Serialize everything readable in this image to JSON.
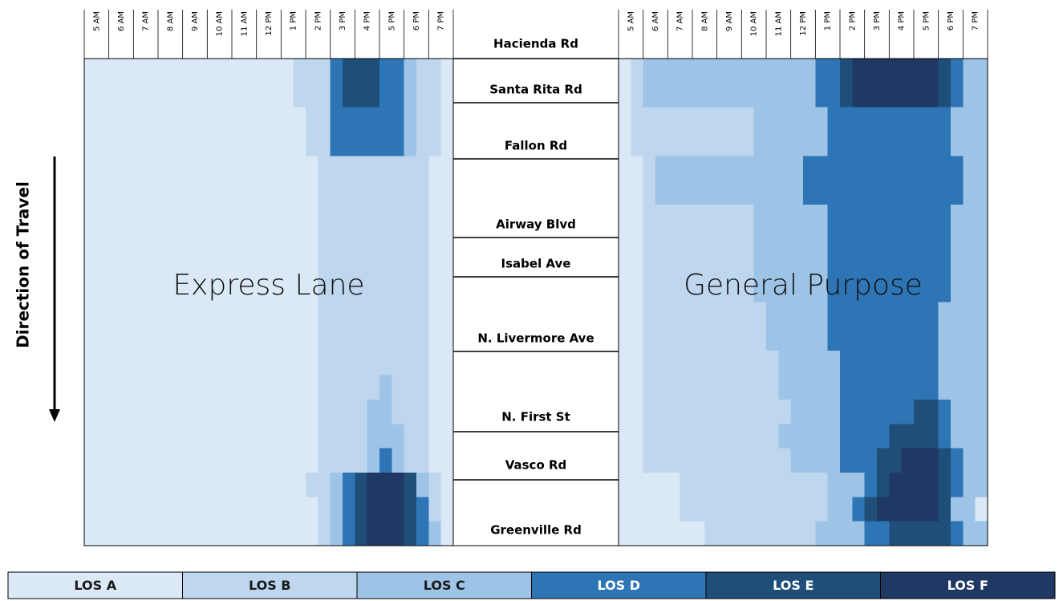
{
  "chart_data": [
    {
      "type": "heatmap",
      "title": "Express Lane",
      "x_labels": [
        "5 AM",
        "6 AM",
        "7 AM",
        "8 AM",
        "9 AM",
        "10 AM",
        "11 AM",
        "12 PM",
        "1 PM",
        "2 PM",
        "3 PM",
        "4 PM",
        "5 PM",
        "6 PM",
        "7 PM"
      ],
      "values": [
        [
          0,
          0,
          0,
          0,
          0,
          0,
          0,
          0,
          0,
          0,
          0,
          0,
          0,
          0,
          0,
          0,
          0,
          1,
          1,
          1,
          3,
          4,
          4,
          4,
          3,
          3,
          2,
          1,
          1,
          0
        ],
        [
          0,
          0,
          0,
          0,
          0,
          0,
          0,
          0,
          0,
          0,
          0,
          0,
          0,
          0,
          0,
          0,
          0,
          1,
          1,
          1,
          3,
          4,
          4,
          4,
          3,
          3,
          2,
          1,
          1,
          0
        ],
        [
          0,
          0,
          0,
          0,
          0,
          0,
          0,
          0,
          0,
          0,
          0,
          0,
          0,
          0,
          0,
          0,
          0,
          0,
          1,
          1,
          3,
          3,
          3,
          3,
          3,
          3,
          2,
          1,
          1,
          0
        ],
        [
          0,
          0,
          0,
          0,
          0,
          0,
          0,
          0,
          0,
          0,
          0,
          0,
          0,
          0,
          0,
          0,
          0,
          0,
          1,
          1,
          3,
          3,
          3,
          3,
          3,
          3,
          2,
          1,
          1,
          0
        ],
        [
          0,
          0,
          0,
          0,
          0,
          0,
          0,
          0,
          0,
          0,
          0,
          0,
          0,
          0,
          0,
          0,
          0,
          0,
          0,
          1,
          1,
          1,
          1,
          1,
          1,
          1,
          1,
          1,
          0,
          0
        ],
        [
          0,
          0,
          0,
          0,
          0,
          0,
          0,
          0,
          0,
          0,
          0,
          0,
          0,
          0,
          0,
          0,
          0,
          0,
          0,
          1,
          1,
          1,
          1,
          1,
          1,
          1,
          1,
          1,
          0,
          0
        ],
        [
          0,
          0,
          0,
          0,
          0,
          0,
          0,
          0,
          0,
          0,
          0,
          0,
          0,
          0,
          0,
          0,
          0,
          0,
          0,
          1,
          1,
          1,
          1,
          1,
          1,
          1,
          1,
          1,
          0,
          0
        ],
        [
          0,
          0,
          0,
          0,
          0,
          0,
          0,
          0,
          0,
          0,
          0,
          0,
          0,
          0,
          0,
          0,
          0,
          0,
          0,
          1,
          1,
          1,
          1,
          1,
          1,
          1,
          1,
          1,
          0,
          0
        ],
        [
          0,
          0,
          0,
          0,
          0,
          0,
          0,
          0,
          0,
          0,
          0,
          0,
          0,
          0,
          0,
          0,
          0,
          0,
          0,
          1,
          1,
          1,
          1,
          1,
          1,
          1,
          1,
          1,
          0,
          0
        ],
        [
          0,
          0,
          0,
          0,
          0,
          0,
          0,
          0,
          0,
          0,
          0,
          0,
          0,
          0,
          0,
          0,
          0,
          0,
          0,
          1,
          1,
          1,
          1,
          1,
          1,
          1,
          1,
          1,
          0,
          0
        ],
        [
          0,
          0,
          0,
          0,
          0,
          0,
          0,
          0,
          0,
          0,
          0,
          0,
          0,
          0,
          0,
          0,
          0,
          0,
          0,
          1,
          1,
          1,
          1,
          1,
          1,
          1,
          1,
          1,
          0,
          0
        ],
        [
          0,
          0,
          0,
          0,
          0,
          0,
          0,
          0,
          0,
          0,
          0,
          0,
          0,
          0,
          0,
          0,
          0,
          0,
          0,
          1,
          1,
          1,
          1,
          1,
          1,
          1,
          1,
          1,
          0,
          0
        ],
        [
          0,
          0,
          0,
          0,
          0,
          0,
          0,
          0,
          0,
          0,
          0,
          0,
          0,
          0,
          0,
          0,
          0,
          0,
          0,
          1,
          1,
          1,
          1,
          1,
          1,
          1,
          1,
          1,
          0,
          0
        ],
        [
          0,
          0,
          0,
          0,
          0,
          0,
          0,
          0,
          0,
          0,
          0,
          0,
          0,
          0,
          0,
          0,
          0,
          0,
          0,
          1,
          1,
          1,
          1,
          1,
          2,
          1,
          1,
          1,
          0,
          0
        ],
        [
          0,
          0,
          0,
          0,
          0,
          0,
          0,
          0,
          0,
          0,
          0,
          0,
          0,
          0,
          0,
          0,
          0,
          0,
          0,
          1,
          1,
          1,
          1,
          2,
          2,
          1,
          1,
          1,
          0,
          0
        ],
        [
          0,
          0,
          0,
          0,
          0,
          0,
          0,
          0,
          0,
          0,
          0,
          0,
          0,
          0,
          0,
          0,
          0,
          0,
          0,
          1,
          1,
          1,
          1,
          2,
          2,
          2,
          1,
          1,
          0,
          0
        ],
        [
          0,
          0,
          0,
          0,
          0,
          0,
          0,
          0,
          0,
          0,
          0,
          0,
          0,
          0,
          0,
          0,
          0,
          0,
          0,
          1,
          1,
          1,
          1,
          2,
          3,
          2,
          1,
          1,
          0,
          0
        ],
        [
          0,
          0,
          0,
          0,
          0,
          0,
          0,
          0,
          0,
          0,
          0,
          0,
          0,
          0,
          0,
          0,
          0,
          0,
          1,
          1,
          2,
          3,
          4,
          5,
          5,
          5,
          4,
          2,
          1,
          0
        ],
        [
          0,
          0,
          0,
          0,
          0,
          0,
          0,
          0,
          0,
          0,
          0,
          0,
          0,
          0,
          0,
          0,
          0,
          0,
          0,
          1,
          2,
          3,
          4,
          5,
          5,
          5,
          4,
          3,
          1,
          0
        ],
        [
          0,
          0,
          0,
          0,
          0,
          0,
          0,
          0,
          0,
          0,
          0,
          0,
          0,
          0,
          0,
          0,
          0,
          0,
          0,
          1,
          2,
          3,
          4,
          5,
          5,
          5,
          4,
          3,
          2,
          0
        ]
      ]
    },
    {
      "type": "heatmap",
      "title": "General Purpose",
      "x_labels": [
        "5 AM",
        "6 AM",
        "7 AM",
        "8 AM",
        "9 AM",
        "10 AM",
        "11 AM",
        "12 PM",
        "1 PM",
        "2 PM",
        "3 PM",
        "4 PM",
        "5 PM",
        "6 PM",
        "7 PM"
      ],
      "values": [
        [
          0,
          1,
          2,
          2,
          2,
          2,
          2,
          2,
          2,
          2,
          2,
          2,
          2,
          2,
          2,
          2,
          3,
          3,
          4,
          5,
          5,
          5,
          5,
          5,
          5,
          5,
          4,
          3,
          2,
          2
        ],
        [
          0,
          1,
          2,
          2,
          2,
          2,
          2,
          2,
          2,
          2,
          2,
          2,
          2,
          2,
          2,
          2,
          3,
          3,
          4,
          5,
          5,
          5,
          5,
          5,
          5,
          5,
          4,
          3,
          2,
          2
        ],
        [
          0,
          1,
          1,
          1,
          1,
          1,
          1,
          1,
          1,
          1,
          1,
          2,
          2,
          2,
          2,
          2,
          2,
          3,
          3,
          3,
          3,
          3,
          3,
          3,
          3,
          3,
          3,
          2,
          2,
          2
        ],
        [
          0,
          1,
          1,
          1,
          1,
          1,
          1,
          1,
          1,
          1,
          1,
          2,
          2,
          2,
          2,
          2,
          2,
          3,
          3,
          3,
          3,
          3,
          3,
          3,
          3,
          3,
          3,
          2,
          2,
          2
        ],
        [
          0,
          0,
          1,
          2,
          2,
          2,
          2,
          2,
          2,
          2,
          2,
          2,
          2,
          2,
          2,
          3,
          3,
          3,
          3,
          3,
          3,
          3,
          3,
          3,
          3,
          3,
          3,
          3,
          2,
          2
        ],
        [
          0,
          0,
          1,
          2,
          2,
          2,
          2,
          2,
          2,
          2,
          2,
          2,
          2,
          2,
          2,
          3,
          3,
          3,
          3,
          3,
          3,
          3,
          3,
          3,
          3,
          3,
          3,
          3,
          2,
          2
        ],
        [
          0,
          0,
          1,
          1,
          1,
          1,
          1,
          1,
          1,
          1,
          1,
          2,
          2,
          2,
          2,
          2,
          2,
          3,
          3,
          3,
          3,
          3,
          3,
          3,
          3,
          3,
          3,
          2,
          2,
          2
        ],
        [
          0,
          0,
          1,
          1,
          1,
          1,
          1,
          1,
          1,
          1,
          1,
          2,
          2,
          2,
          2,
          2,
          2,
          3,
          3,
          3,
          3,
          3,
          3,
          3,
          3,
          3,
          3,
          2,
          2,
          2
        ],
        [
          0,
          0,
          1,
          1,
          1,
          1,
          1,
          1,
          1,
          1,
          1,
          2,
          2,
          2,
          2,
          2,
          2,
          3,
          3,
          3,
          3,
          3,
          3,
          3,
          3,
          3,
          3,
          2,
          2,
          2
        ],
        [
          0,
          0,
          1,
          1,
          1,
          1,
          1,
          1,
          1,
          1,
          1,
          2,
          2,
          2,
          2,
          2,
          2,
          3,
          3,
          3,
          3,
          3,
          3,
          3,
          3,
          3,
          3,
          2,
          2,
          2
        ],
        [
          0,
          0,
          1,
          1,
          1,
          1,
          1,
          1,
          1,
          1,
          1,
          1,
          2,
          2,
          2,
          2,
          2,
          3,
          3,
          3,
          3,
          3,
          3,
          3,
          3,
          3,
          2,
          2,
          2,
          2
        ],
        [
          0,
          0,
          1,
          1,
          1,
          1,
          1,
          1,
          1,
          1,
          1,
          1,
          2,
          2,
          2,
          2,
          2,
          3,
          3,
          3,
          3,
          3,
          3,
          3,
          3,
          3,
          2,
          2,
          2,
          2
        ],
        [
          0,
          0,
          1,
          1,
          1,
          1,
          1,
          1,
          1,
          1,
          1,
          1,
          1,
          2,
          2,
          2,
          2,
          2,
          3,
          3,
          3,
          3,
          3,
          3,
          3,
          3,
          2,
          2,
          2,
          2
        ],
        [
          0,
          0,
          1,
          1,
          1,
          1,
          1,
          1,
          1,
          1,
          1,
          1,
          1,
          2,
          2,
          2,
          2,
          2,
          3,
          3,
          3,
          3,
          3,
          3,
          3,
          3,
          2,
          2,
          2,
          2
        ],
        [
          0,
          0,
          1,
          1,
          1,
          1,
          1,
          1,
          1,
          1,
          1,
          1,
          1,
          1,
          2,
          2,
          2,
          2,
          3,
          3,
          3,
          3,
          3,
          3,
          4,
          4,
          3,
          2,
          2,
          2
        ],
        [
          0,
          0,
          1,
          1,
          1,
          1,
          1,
          1,
          1,
          1,
          1,
          1,
          1,
          2,
          2,
          2,
          2,
          2,
          3,
          3,
          3,
          3,
          4,
          4,
          4,
          4,
          3,
          2,
          2,
          2
        ],
        [
          0,
          0,
          1,
          1,
          1,
          1,
          1,
          1,
          1,
          1,
          1,
          1,
          1,
          1,
          2,
          2,
          2,
          2,
          3,
          3,
          3,
          4,
          4,
          5,
          5,
          5,
          4,
          3,
          2,
          2
        ],
        [
          0,
          0,
          0,
          0,
          0,
          1,
          1,
          1,
          1,
          1,
          1,
          1,
          1,
          1,
          1,
          1,
          1,
          2,
          2,
          2,
          3,
          4,
          5,
          5,
          5,
          5,
          4,
          3,
          2,
          2
        ],
        [
          0,
          0,
          0,
          0,
          0,
          1,
          1,
          1,
          1,
          1,
          1,
          1,
          1,
          1,
          1,
          1,
          1,
          2,
          2,
          3,
          4,
          5,
          5,
          5,
          5,
          5,
          4,
          2,
          2,
          0
        ],
        [
          0,
          0,
          0,
          0,
          0,
          0,
          0,
          1,
          1,
          1,
          1,
          1,
          1,
          1,
          1,
          1,
          2,
          2,
          2,
          2,
          3,
          3,
          4,
          4,
          4,
          4,
          4,
          3,
          2,
          2
        ]
      ]
    }
  ],
  "y_label": "Direction of Travel",
  "road_labels": [
    "Hacienda Rd",
    "Santa Rita Rd",
    "Fallon Rd",
    "Airway Blvd",
    "Isabel Ave",
    "N. Livermore Ave",
    "N. First St",
    "Vasco Rd",
    "Greenville Rd"
  ],
  "legend": {
    "labels": [
      "LOS A",
      "LOS B",
      "LOS C",
      "LOS D",
      "LOS E",
      "LOS F"
    ],
    "colors": [
      "#dbe8f5",
      "#bed6ee",
      "#9dc3e6",
      "#2e75b6",
      "#1f4e79",
      "#203864"
    ]
  }
}
